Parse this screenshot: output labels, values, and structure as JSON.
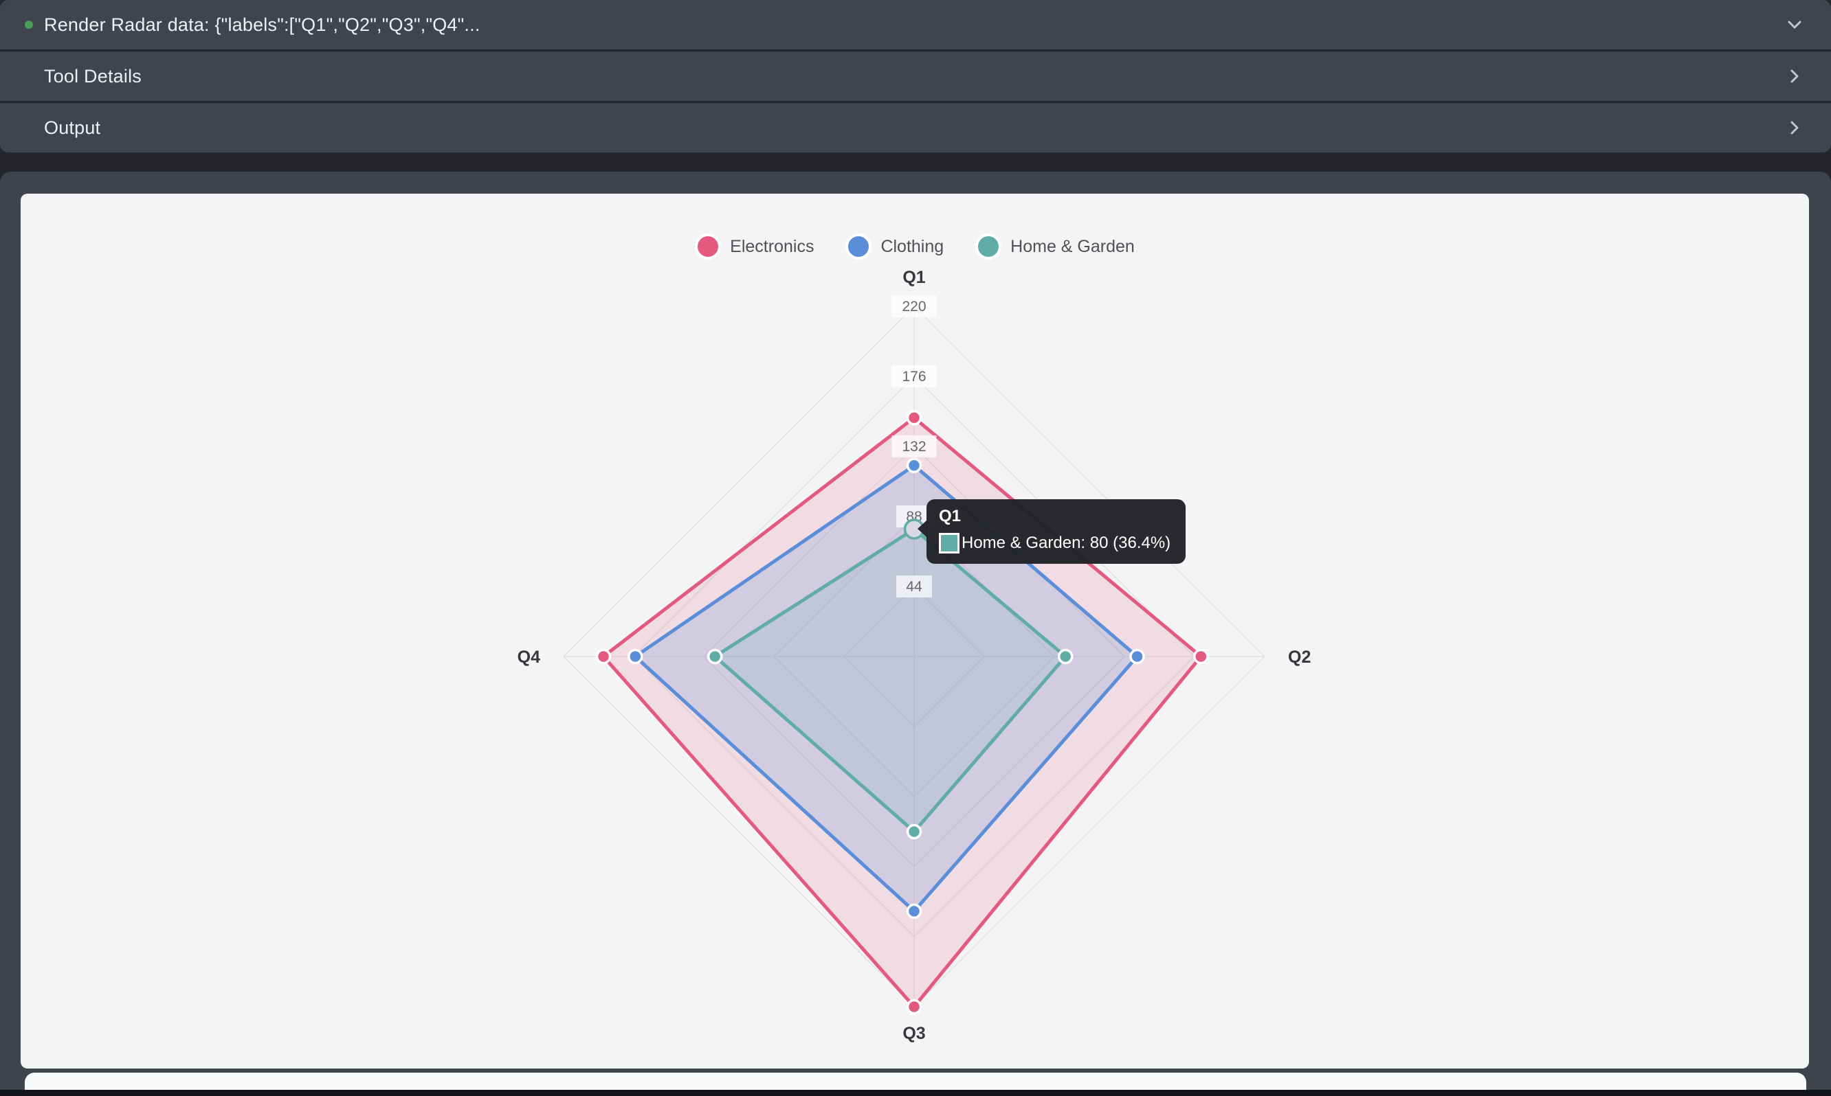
{
  "header": {
    "rows": [
      {
        "label": "Render Radar data: {\"labels\":[\"Q1\",\"Q2\",\"Q3\",\"Q4\"...",
        "chevron": "down",
        "has_status_dot": true
      },
      {
        "label": "Tool Details",
        "chevron": "right",
        "has_status_dot": false
      },
      {
        "label": "Output",
        "chevron": "right",
        "has_status_dot": false
      }
    ],
    "status_color": "#4b9e57",
    "chevron_color": "#c3c6cb"
  },
  "chart_data": {
    "type": "radar",
    "categories": [
      "Q1",
      "Q2",
      "Q3",
      "Q4"
    ],
    "series": [
      {
        "name": "Electronics",
        "color": "#e4597f",
        "fill_opacity": 0.15,
        "values": [
          150,
          180,
          220,
          195
        ]
      },
      {
        "name": "Clothing",
        "color": "#5b8ed8",
        "fill_opacity": 0.2,
        "values": [
          120,
          140,
          160,
          175
        ]
      },
      {
        "name": "Home & Garden",
        "color": "#61aca6",
        "fill_opacity": 0.15,
        "values": [
          80,
          95,
          110,
          125
        ]
      }
    ],
    "ticks": [
      44,
      88,
      132,
      176,
      220
    ],
    "rmin": 0,
    "rmax": 220,
    "grid": true,
    "legend_position": "top",
    "grid_color": "#e2e2e4",
    "tick_color": "#63666b",
    "axis_label_color": "#36373a",
    "hovered_point": {
      "series": "Home & Garden",
      "category": "Q1"
    }
  },
  "tooltip": {
    "title": "Q1",
    "series": "Home & Garden",
    "value": 80,
    "percent": "36.4%",
    "text": "Home & Garden: 80 (36.4%)",
    "swatch_color": "#61aca6"
  }
}
